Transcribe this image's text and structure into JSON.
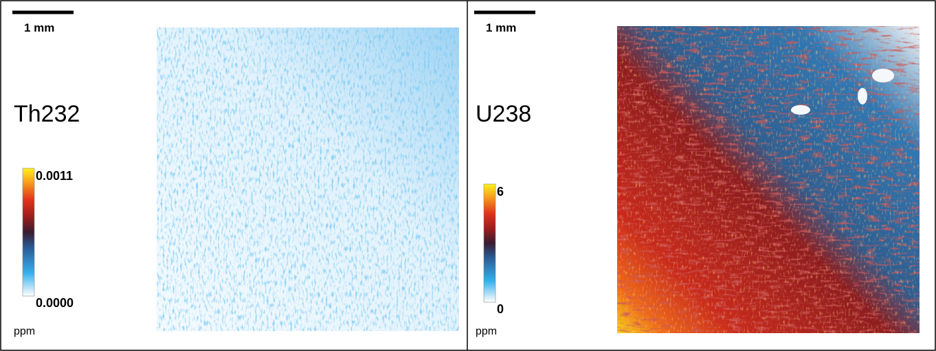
{
  "panels": [
    {
      "scale_bar_label": "1 mm",
      "element": "Th232",
      "colorbar_max": "0.0011",
      "colorbar_min": "0.0000",
      "unit": "ppm"
    },
    {
      "scale_bar_label": "1 mm",
      "element": "U238",
      "colorbar_max": "6",
      "colorbar_min": "0",
      "unit": "ppm"
    }
  ]
}
